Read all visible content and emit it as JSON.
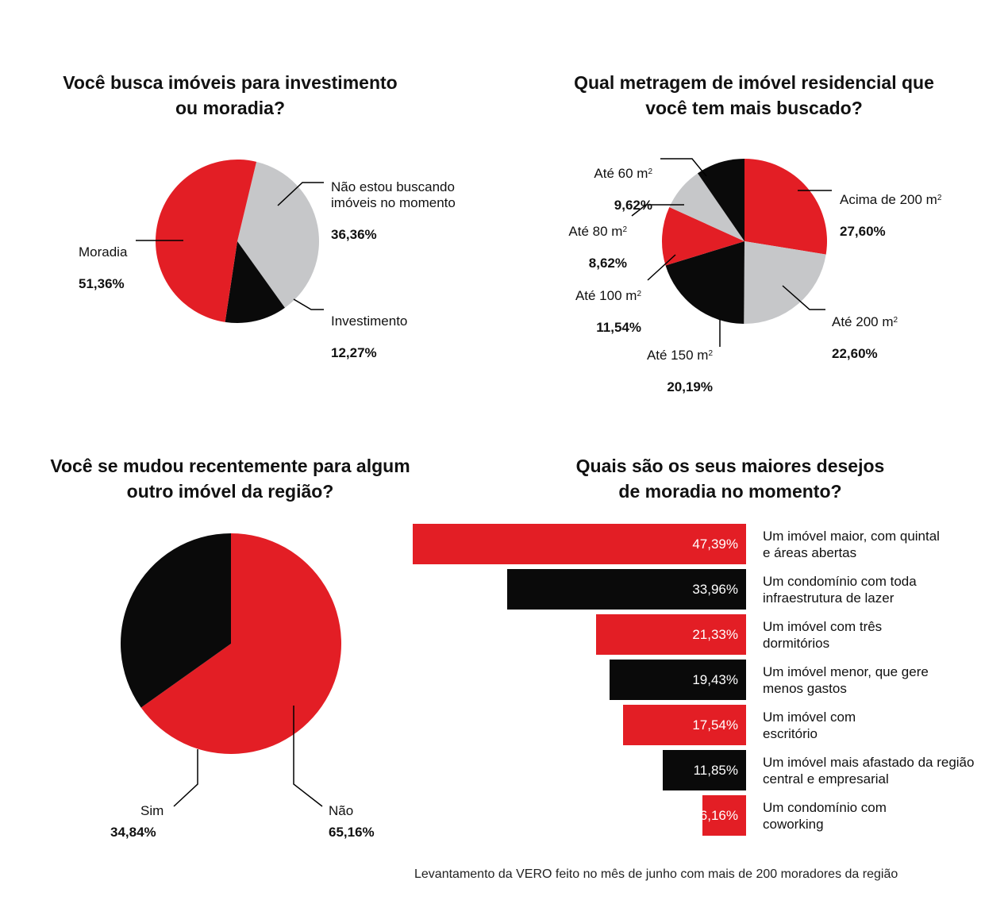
{
  "colors": {
    "red": "#e31e25",
    "black": "#0a0a0a",
    "grey": "#c6c7c9",
    "line": "#000000"
  },
  "footer": "Levantamento da VERO feito no mês de junho com mais de 200 moradores da região",
  "chart_data": [
    {
      "type": "pie",
      "title": "Você busca imóveis para investimento\nou moradia?",
      "slices": [
        {
          "label": "Não estou buscando\nimóveis no momento",
          "value": 36.36,
          "value_text": "36,36%",
          "color": "grey"
        },
        {
          "label": "Investimento",
          "value": 12.27,
          "value_text": "12,27%",
          "color": "black"
        },
        {
          "label": "Moradia",
          "value": 51.36,
          "value_text": "51,36%",
          "color": "red"
        }
      ]
    },
    {
      "type": "pie",
      "title": "Qual metragem de imóvel residencial que\nvocê tem mais buscado?",
      "unit_superscript": "2",
      "slices": [
        {
          "label": "Acima de 200 m",
          "value": 27.6,
          "value_text": "27,60%",
          "color": "red"
        },
        {
          "label": "Até 200 m",
          "value": 22.6,
          "value_text": "22,60%",
          "color": "grey"
        },
        {
          "label": "Até 150 m",
          "value": 20.19,
          "value_text": "20,19%",
          "color": "black"
        },
        {
          "label": "Até 100 m",
          "value": 11.54,
          "value_text": "11,54%",
          "color": "red"
        },
        {
          "label": "Até 80 m",
          "value": 8.62,
          "value_text": "8,62%",
          "color": "grey"
        },
        {
          "label": "Até 60 m",
          "value": 9.62,
          "value_text": "9,62%",
          "color": "black"
        }
      ]
    },
    {
      "type": "pie",
      "title": "Você se mudou recentemente para algum\noutro imóvel da região?",
      "slices": [
        {
          "label": "Não",
          "value": 65.16,
          "value_text": "65,16%",
          "color": "red"
        },
        {
          "label": "Sim",
          "value": 34.84,
          "value_text": "34,84%",
          "color": "black"
        }
      ]
    },
    {
      "type": "bar",
      "orientation": "horizontal",
      "title": "Quais são os seus maiores desejos\nde moradia no momento?",
      "categories": [
        "Um imóvel maior, com quintal\ne áreas abertas",
        "Um condomínio com toda\ninfraestrutura de lazer",
        "Um imóvel com três\ndormitórios",
        "Um imóvel menor, que gere\nmenos gastos",
        "Um imóvel com\nescritório",
        "Um imóvel mais afastado da região\ncentral e empresarial",
        "Um condomínio com\ncoworking"
      ],
      "values": [
        47.39,
        33.96,
        21.33,
        19.43,
        17.54,
        11.85,
        6.16
      ],
      "value_labels": [
        "47,39%",
        "33,96%",
        "21,33%",
        "19,43%",
        "17,54%",
        "11,85%",
        "6,16%"
      ],
      "colors": [
        "red",
        "black",
        "red",
        "black",
        "red",
        "black",
        "red"
      ]
    }
  ]
}
